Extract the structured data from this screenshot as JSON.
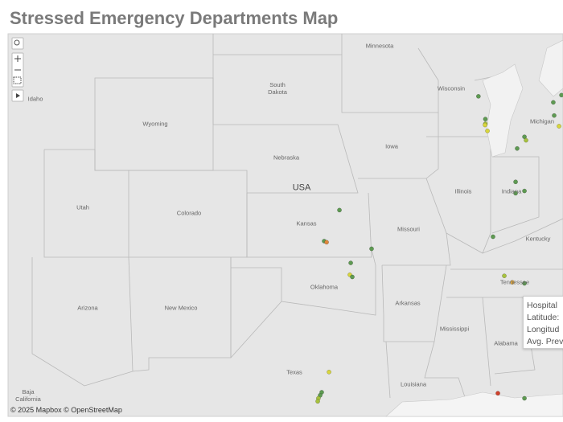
{
  "title": "Stressed Emergency Departments Map",
  "map": {
    "country_label": "USA",
    "labels": [
      "Minnesota",
      "South Dakota",
      "Wisconsin",
      "Michigan",
      "Idaho",
      "Wyoming",
      "Iowa",
      "Nebraska",
      "Illinois",
      "Indiana",
      "Utah",
      "Colorado",
      "Kansas",
      "Missouri",
      "Kentucky",
      "Tennessee",
      "Oklahoma",
      "Arkansas",
      "Arizona",
      "New Mexico",
      "Mississippi",
      "Alabama",
      "Texas",
      "Louisiana",
      "Baja California"
    ],
    "attribution": "© 2025 Mapbox © OpenStreetMap",
    "points": [
      {
        "lat": 44.0,
        "lon": -88.5,
        "color": "#5e9a52"
      },
      {
        "lat": 43.05,
        "lon": -88.1,
        "color": "#5e9a52"
      },
      {
        "lat": 42.85,
        "lon": -88.1,
        "color": "#a7c23e"
      },
      {
        "lat": 42.8,
        "lon": -88.12,
        "color": "#d8d63c"
      },
      {
        "lat": 42.55,
        "lon": -87.98,
        "color": "#d8d63c"
      },
      {
        "lat": 41.8,
        "lon": -86.27,
        "color": "#5e9a52"
      },
      {
        "lat": 42.3,
        "lon": -85.85,
        "color": "#5e9a52"
      },
      {
        "lat": 42.15,
        "lon": -85.76,
        "color": "#a7c23e"
      },
      {
        "lat": 43.2,
        "lon": -84.14,
        "color": "#5e9a52"
      },
      {
        "lat": 43.75,
        "lon": -84.19,
        "color": "#5e9a52"
      },
      {
        "lat": 44.05,
        "lon": -83.72,
        "color": "#5e9a52"
      },
      {
        "lat": 42.75,
        "lon": -83.86,
        "color": "#d8d63c"
      },
      {
        "lat": 40.35,
        "lon": -86.36,
        "color": "#5e9a52"
      },
      {
        "lat": 39.95,
        "lon": -85.85,
        "color": "#5e9a52"
      },
      {
        "lat": 39.85,
        "lon": -86.36,
        "color": "#5e9a52"
      },
      {
        "lat": 37.9,
        "lon": -87.66,
        "color": "#5e9a52"
      },
      {
        "lat": 39.1,
        "lon": -96.5,
        "color": "#5e9a52"
      },
      {
        "lat": 37.7,
        "lon": -97.38,
        "color": "#5e9a52"
      },
      {
        "lat": 37.65,
        "lon": -97.24,
        "color": "#e0873a"
      },
      {
        "lat": 37.35,
        "lon": -94.65,
        "color": "#5e9a52"
      },
      {
        "lat": 36.7,
        "lon": -95.85,
        "color": "#5e9a52"
      },
      {
        "lat": 36.15,
        "lon": -95.9,
        "color": "#d8d63c"
      },
      {
        "lat": 36.05,
        "lon": -95.76,
        "color": "#5e9a52"
      },
      {
        "lat": 36.1,
        "lon": -87.01,
        "color": "#a7c23e"
      },
      {
        "lat": 35.8,
        "lon": -86.55,
        "color": "#e0a63a"
      },
      {
        "lat": 35.75,
        "lon": -85.85,
        "color": "#5e9a52"
      },
      {
        "lat": 31.5,
        "lon": -97.1,
        "color": "#d8d63c"
      },
      {
        "lat": 30.5,
        "lon": -97.52,
        "color": "#5e9a52"
      },
      {
        "lat": 30.35,
        "lon": -97.61,
        "color": "#5e9a52"
      },
      {
        "lat": 30.2,
        "lon": -97.71,
        "color": "#a7c23e"
      },
      {
        "lat": 30.05,
        "lon": -97.75,
        "color": "#a7c23e"
      },
      {
        "lat": 30.45,
        "lon": -87.38,
        "color": "#d0412c"
      },
      {
        "lat": 30.2,
        "lon": -85.85,
        "color": "#5e9a52"
      }
    ]
  },
  "tooltip": {
    "lines": [
      "Hospital",
      "Latitude:",
      "Longitud",
      "Avg. Prev"
    ]
  }
}
